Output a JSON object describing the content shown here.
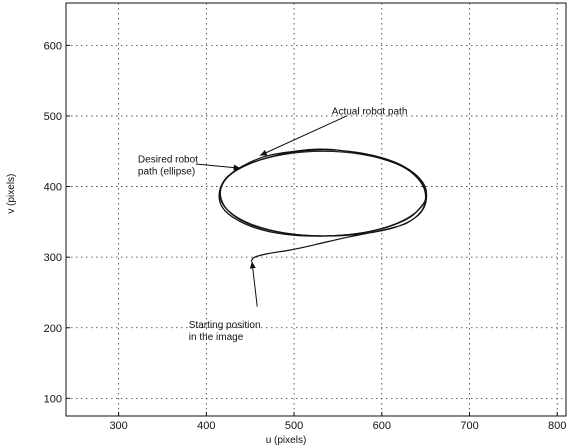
{
  "chart_data": {
    "type": "line",
    "title": "",
    "xlabel": "u (pixels)",
    "ylabel": "v (pixels)",
    "xlim": [
      240,
      810
    ],
    "ylim": [
      75,
      660
    ],
    "xticks": [
      300,
      400,
      500,
      600,
      700,
      800
    ],
    "yticks": [
      100,
      200,
      300,
      400,
      500,
      600
    ],
    "grid": true,
    "series": [
      {
        "name": "Desired robot path (ellipse)",
        "kind": "ellipse",
        "center": [
          533,
          390
        ],
        "radii": [
          118,
          60
        ]
      },
      {
        "name": "Actual robot path",
        "x": [
          451,
          455,
          470,
          495,
          525,
          560,
          600,
          628,
          645,
          650,
          645,
          628,
          600,
          560,
          530,
          500,
          465,
          432,
          418,
          417,
          428,
          452,
          490,
          533,
          578,
          617,
          642,
          651,
          645,
          626,
          597,
          563,
          533,
          500,
          470,
          445,
          424,
          415,
          418,
          436,
          465,
          500,
          535,
          570,
          605,
          633,
          649
        ],
        "y": [
          294,
          300,
          305,
          310,
          318,
          328,
          338,
          348,
          365,
          385,
          405,
          425,
          440,
          450,
          453,
          450,
          442,
          422,
          402,
          382,
          362,
          345,
          334,
          330,
          333,
          343,
          360,
          384,
          408,
          428,
          442,
          450,
          452,
          449,
          441,
          430,
          414,
          393,
          371,
          352,
          338,
          331,
          330,
          333,
          342,
          357,
          378
        ]
      }
    ],
    "annotations": [
      {
        "lines": [
          "Actual robot path"
        ],
        "text_at": [
          543,
          502
        ],
        "arrow_from": [
          560,
          500
        ],
        "arrow_to": [
          461,
          444
        ]
      },
      {
        "lines": [
          "Desired robot",
          "path (ellipse)"
        ],
        "text_at": [
          322,
          434
        ],
        "arrow_from": [
          388,
          432
        ],
        "arrow_to": [
          439,
          426
        ]
      },
      {
        "lines": [
          "Starting position",
          "in the image"
        ],
        "text_at": [
          380,
          200
        ],
        "arrow_from": [
          458,
          230
        ],
        "arrow_to": [
          452,
          294
        ]
      }
    ]
  }
}
